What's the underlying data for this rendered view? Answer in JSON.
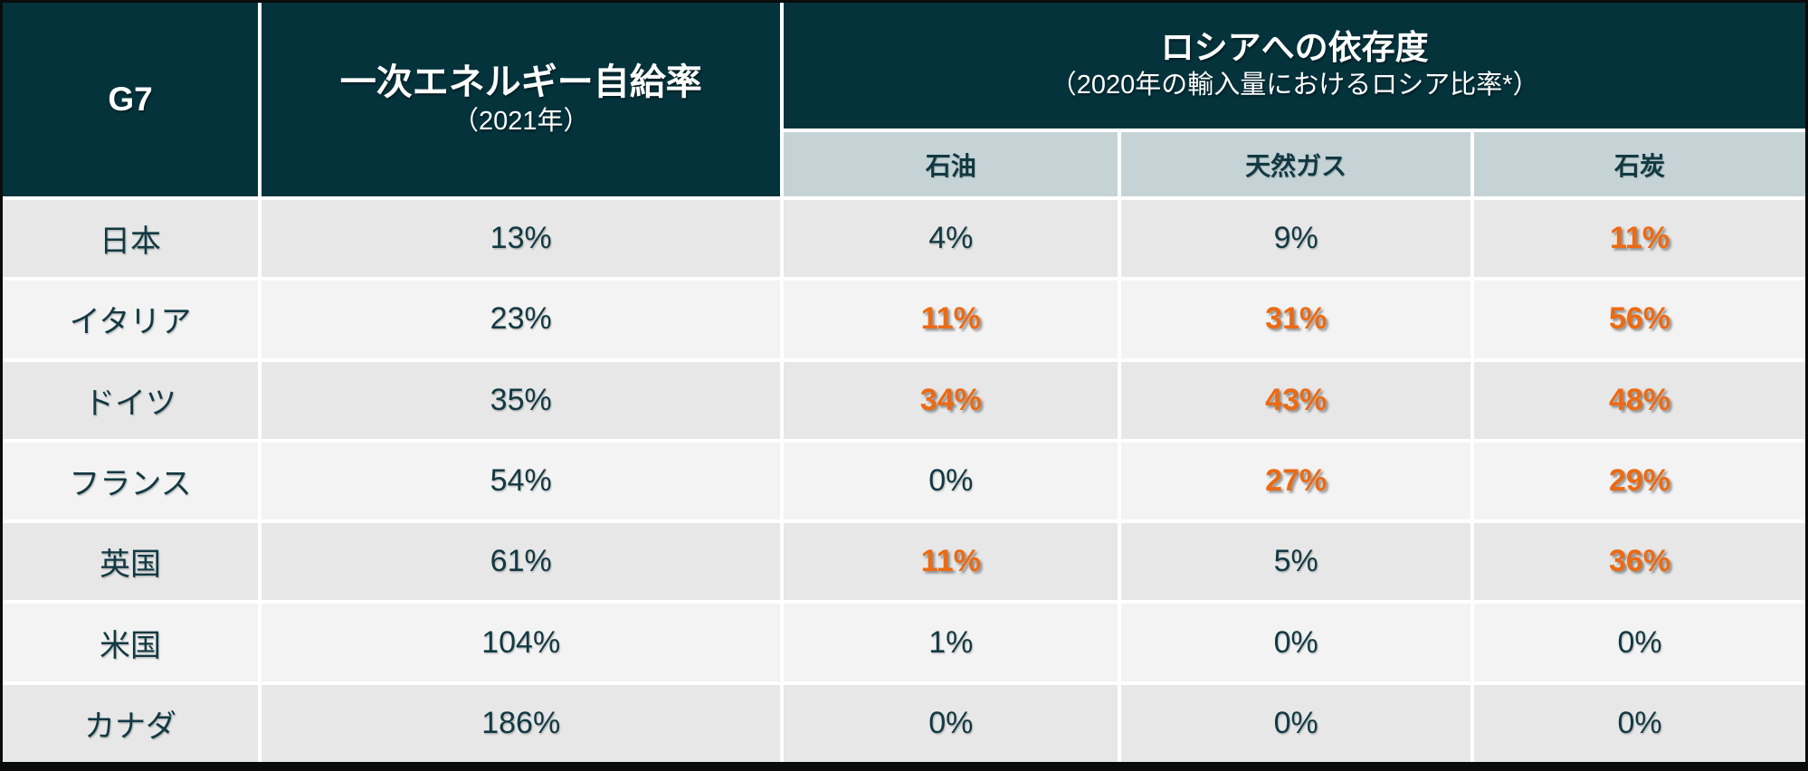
{
  "table": {
    "header": {
      "group_label": "G7",
      "self_sufficiency_title": "一次エネルギー自給率",
      "self_sufficiency_subtitle": "（2021年）",
      "russia_title": "ロシアへの依存度",
      "russia_subtitle": "（2020年の輸入量におけるロシア比率*）",
      "sub_columns": {
        "oil": "石油",
        "gas": "天然ガス",
        "coal": "石炭"
      }
    },
    "rows": [
      {
        "country": "日本",
        "self_sufficiency": "13%",
        "oil": "4%",
        "gas": "9%",
        "coal": "11%",
        "oil_hl": false,
        "gas_hl": false,
        "coal_hl": true
      },
      {
        "country": "イタリア",
        "self_sufficiency": "23%",
        "oil": "11%",
        "gas": "31%",
        "coal": "56%",
        "oil_hl": true,
        "gas_hl": true,
        "coal_hl": true
      },
      {
        "country": "ドイツ",
        "self_sufficiency": "35%",
        "oil": "34%",
        "gas": "43%",
        "coal": "48%",
        "oil_hl": true,
        "gas_hl": true,
        "coal_hl": true
      },
      {
        "country": "フランス",
        "self_sufficiency": "54%",
        "oil": "0%",
        "gas": "27%",
        "coal": "29%",
        "oil_hl": false,
        "gas_hl": true,
        "coal_hl": true
      },
      {
        "country": "英国",
        "self_sufficiency": "61%",
        "oil": "11%",
        "gas": "5%",
        "coal": "36%",
        "oil_hl": true,
        "gas_hl": false,
        "coal_hl": true
      },
      {
        "country": "米国",
        "self_sufficiency": "104%",
        "oil": "1%",
        "gas": "0%",
        "coal": "0%",
        "oil_hl": false,
        "gas_hl": false,
        "coal_hl": false
      },
      {
        "country": "カナダ",
        "self_sufficiency": "186%",
        "oil": "0%",
        "gas": "0%",
        "coal": "0%",
        "oil_hl": false,
        "gas_hl": false,
        "coal_hl": false
      }
    ],
    "colors": {
      "header_background": "#04333c",
      "subheader_background": "#c5d3d7",
      "row_alternate_dark": "#e7e7e7",
      "row_alternate_light": "#f3f3f3",
      "highlight_orange": "#ec6a13",
      "text_dark_teal": "#123942"
    }
  },
  "chart_data": {
    "type": "table",
    "title": "G7 一次エネルギー自給率とロシアへの依存度",
    "columns": [
      "G7",
      "一次エネルギー自給率（2021年）",
      "ロシアへの依存度 石油",
      "ロシアへの依存度 天然ガス",
      "ロシアへの依存度 石炭"
    ],
    "rows": [
      [
        "日本",
        13,
        4,
        9,
        11
      ],
      [
        "イタリア",
        23,
        11,
        31,
        56
      ],
      [
        "ドイツ",
        35,
        34,
        43,
        48
      ],
      [
        "フランス",
        54,
        0,
        27,
        29
      ],
      [
        "英国",
        61,
        11,
        5,
        36
      ],
      [
        "米国",
        104,
        1,
        0,
        0
      ],
      [
        "カナダ",
        186,
        0,
        0,
        0
      ]
    ],
    "units": "percent",
    "notes": "ロシアへの依存度は2020年の輸入量におけるロシア比率*。オレンジ強調セル: 日本(石炭), イタリア(石油/天然ガス/石炭), ドイツ(石油/天然ガス/石炭), フランス(天然ガス/石炭), 英国(石油/石炭)"
  }
}
